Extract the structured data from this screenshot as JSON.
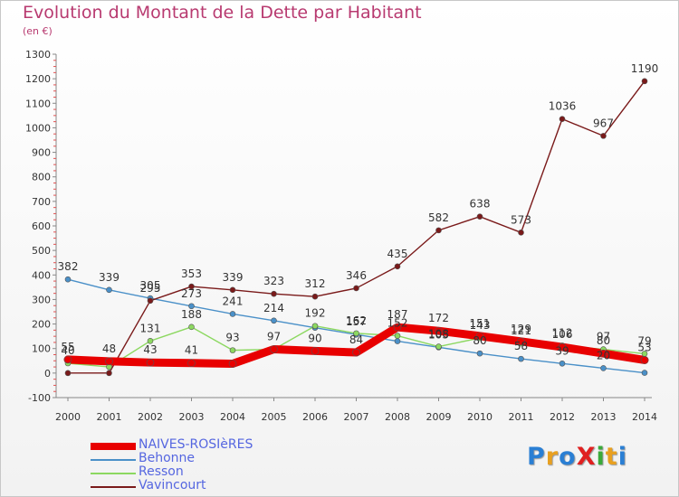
{
  "title": "Evolution du Montant de la Dette par Habitant",
  "unit_label": "(en €)",
  "logo": {
    "text": "ProXiti",
    "colors": [
      "#2a7fd4",
      "#e8a020",
      "#2a7fd4",
      "#e02020",
      "#3aaa3a",
      "#e8a020",
      "#2a7fd4"
    ]
  },
  "chart_data": {
    "type": "line",
    "title": "Evolution du Montant de la Dette par Habitant",
    "ylabel": "(en €)",
    "xlabel": "",
    "x": [
      "2000",
      "2001",
      "2002",
      "2003",
      "2004",
      "2005",
      "2006",
      "2007",
      "2008",
      "2009",
      "2010",
      "2011",
      "2012",
      "2013",
      "2014"
    ],
    "ylim": [
      -100,
      1300
    ],
    "yticks": [
      -100,
      0,
      100,
      200,
      300,
      400,
      500,
      600,
      700,
      800,
      900,
      1000,
      1100,
      1200,
      1300
    ],
    "grid": false,
    "legend_position": "bottom-left",
    "series": [
      {
        "name": "NAIVES-ROSIèRES",
        "color": "#e80000",
        "values": [
          55,
          48,
          43,
          41,
          38,
          97,
          90,
          84,
          187,
          172,
          151,
          129,
          106,
          80,
          53
        ],
        "labels": [
          "55",
          "48",
          "43",
          "41",
          "",
          "97",
          "90",
          "84",
          "187",
          "172",
          "151",
          "129",
          "106",
          "80",
          "53"
        ]
      },
      {
        "name": "Behonne",
        "color": "#4a90c8",
        "values": [
          382,
          339,
          305,
          273,
          241,
          214,
          185,
          157,
          130,
          105,
          80,
          58,
          39,
          20,
          1
        ],
        "labels": [
          "382",
          "339",
          "305",
          "273",
          "241",
          "214",
          "",
          "157",
          "",
          "105",
          "80",
          "58",
          "39",
          "20",
          ""
        ]
      },
      {
        "name": "Resson",
        "color": "#8cd860",
        "values": [
          40,
          25,
          131,
          188,
          93,
          97,
          192,
          162,
          152,
          108,
          143,
          121,
          112,
          97,
          79
        ],
        "labels": [
          "40",
          "",
          "131",
          "188",
          "93",
          "",
          "192",
          "162",
          "152",
          "108",
          "143",
          "121",
          "112",
          "97",
          "79"
        ]
      },
      {
        "name": "Vavincourt",
        "color": "#7a1a1a",
        "values": [
          0,
          0,
          295,
          353,
          339,
          323,
          312,
          346,
          435,
          582,
          638,
          573,
          1036,
          967,
          1190
        ],
        "labels": [
          "",
          "",
          "295",
          "353",
          "339",
          "323",
          "312",
          "346",
          "435",
          "582",
          "638",
          "573",
          "1036",
          "967",
          "1190"
        ]
      }
    ]
  }
}
